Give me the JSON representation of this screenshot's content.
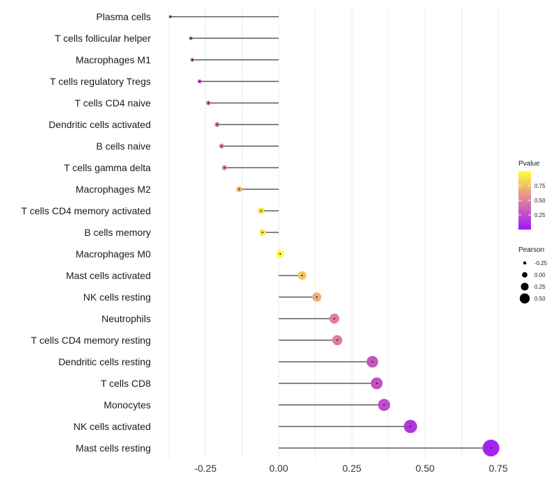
{
  "chart_data": {
    "type": "lollipop",
    "title": "",
    "xlabel": "",
    "ylabel": "",
    "xlim": [
      -0.38,
      0.77
    ],
    "x_ticks": [
      -0.25,
      0.0,
      0.25,
      0.5,
      0.75
    ],
    "x_tick_labels": [
      "-0.25",
      "0.00",
      "0.25",
      "0.50",
      "0.75"
    ],
    "categories": [
      "Plasma cells",
      "T cells follicular helper",
      "Macrophages M1",
      "T cells regulatory  Tregs ",
      "T cells CD4 naive",
      "Dendritic cells activated",
      "B cells naive",
      "T cells gamma delta",
      "Macrophages M2",
      "T cells CD4 memory activated",
      "B cells memory",
      "Macrophages M0",
      "Mast cells activated",
      "NK cells resting",
      "Neutrophils",
      "T cells CD4 memory resting",
      "Dendritic cells resting",
      "T cells CD8",
      "Monocytes",
      "NK cells activated",
      "Mast cells resting"
    ],
    "pearson": [
      -0.37,
      -0.3,
      -0.295,
      -0.27,
      -0.24,
      -0.21,
      -0.195,
      -0.185,
      -0.135,
      -0.06,
      -0.055,
      0.005,
      0.08,
      0.13,
      0.19,
      0.2,
      0.32,
      0.335,
      0.36,
      0.45,
      0.725
    ],
    "pvalue": [
      0.07,
      0.25,
      0.27,
      0.32,
      0.37,
      0.42,
      0.5,
      0.52,
      0.72,
      0.9,
      0.92,
      0.98,
      0.78,
      0.68,
      0.5,
      0.48,
      0.3,
      0.27,
      0.25,
      0.14,
      0.06
    ],
    "color_legend": {
      "title": "Pvalue",
      "labels": [
        "0.75",
        "0.50",
        "0.25"
      ],
      "values": [
        0.75,
        0.5,
        0.25
      ],
      "range": [
        0.0,
        1.0
      ],
      "low_color": "#9b19f5",
      "mid_color": "#e07fa0",
      "high_color": "#ffff2e"
    },
    "size_legend": {
      "title": "Pearson",
      "labels": [
        "-0.25",
        "0.00",
        "0.25",
        "0.50"
      ],
      "values": [
        -0.25,
        0.0,
        0.25,
        0.5
      ]
    },
    "colors": {
      "stem": "#3a3a3a",
      "grid": "#ebebeb"
    }
  }
}
